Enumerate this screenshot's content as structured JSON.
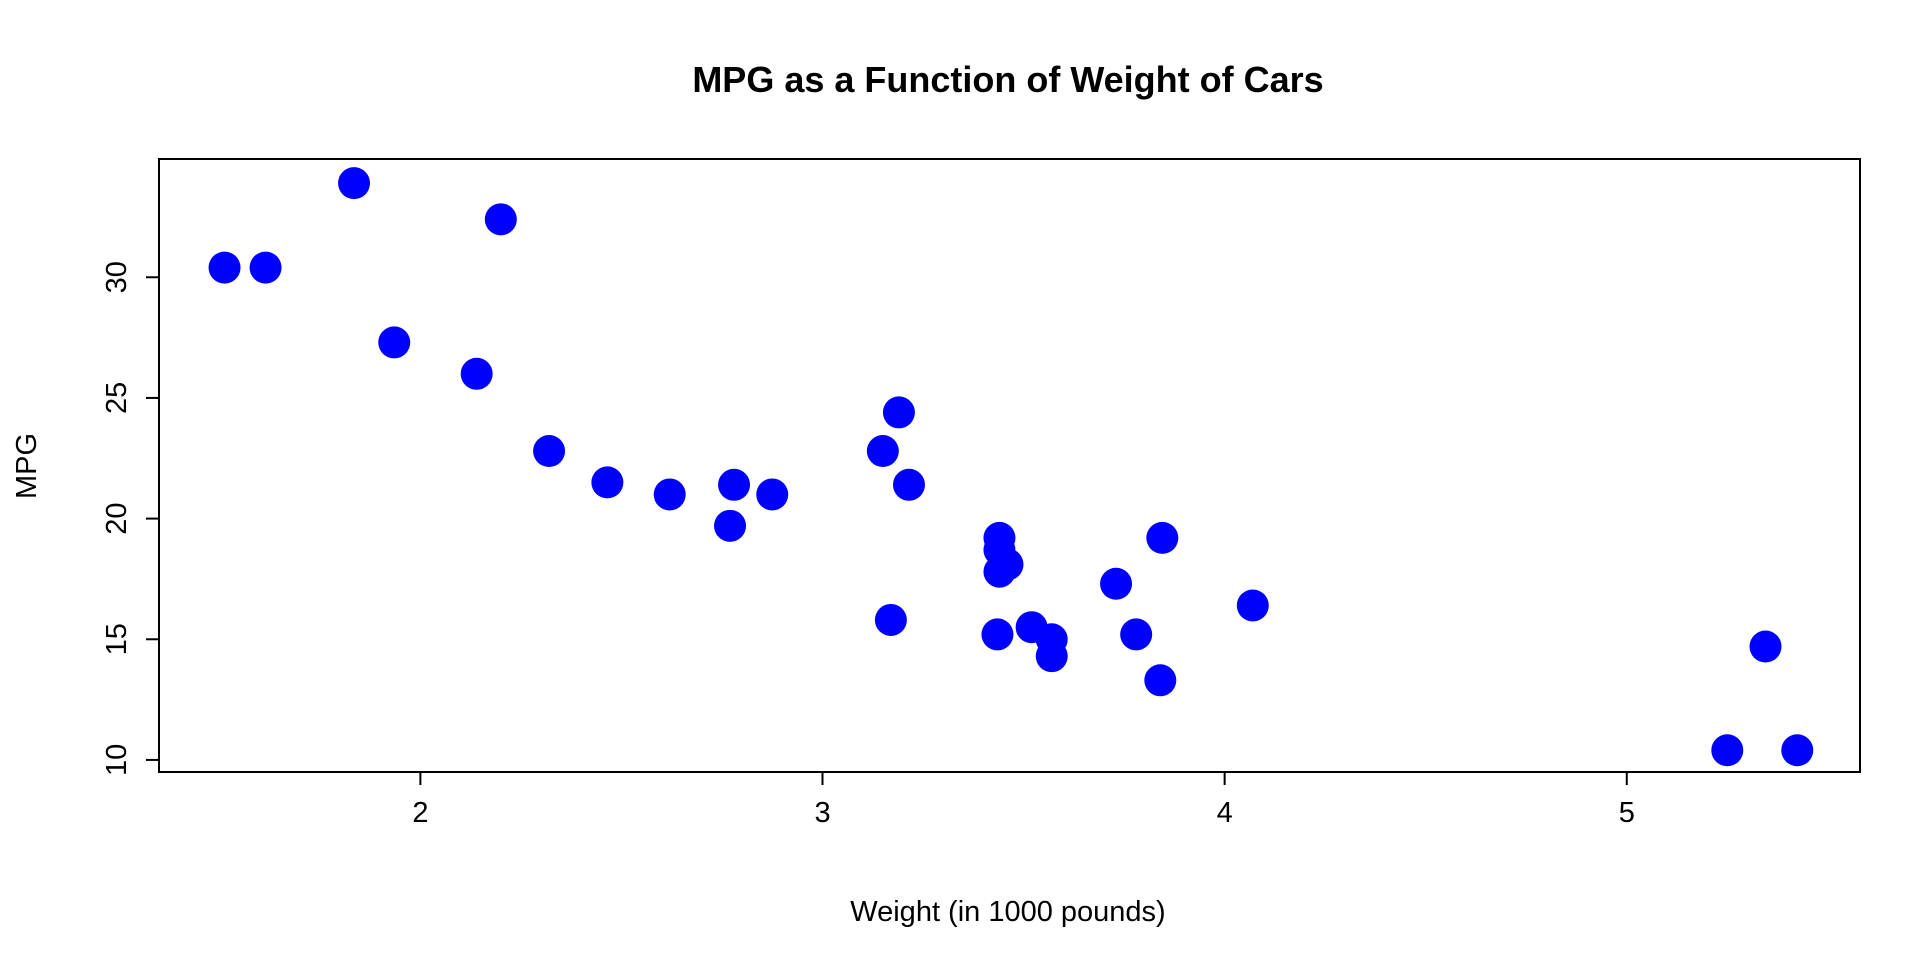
{
  "chart_data": {
    "type": "scatter",
    "title": "MPG as a Function of Weight of Cars",
    "xlabel": "Weight (in 1000 pounds)",
    "ylabel": "MPG",
    "xlim": [
      1.35,
      5.58
    ],
    "ylim": [
      9.5,
      34.9
    ],
    "xticks": [
      2,
      3,
      4,
      5
    ],
    "yticks": [
      10,
      15,
      20,
      25,
      30
    ],
    "grid": false,
    "point_color": "#0000ff",
    "points": [
      {
        "x": 2.62,
        "y": 21.0
      },
      {
        "x": 2.875,
        "y": 21.0
      },
      {
        "x": 2.32,
        "y": 22.8
      },
      {
        "x": 3.215,
        "y": 21.4
      },
      {
        "x": 3.44,
        "y": 18.7
      },
      {
        "x": 3.46,
        "y": 18.1
      },
      {
        "x": 3.57,
        "y": 14.3
      },
      {
        "x": 3.19,
        "y": 24.4
      },
      {
        "x": 3.15,
        "y": 22.8
      },
      {
        "x": 3.44,
        "y": 19.2
      },
      {
        "x": 3.44,
        "y": 17.8
      },
      {
        "x": 4.07,
        "y": 16.4
      },
      {
        "x": 3.73,
        "y": 17.3
      },
      {
        "x": 3.78,
        "y": 15.2
      },
      {
        "x": 5.25,
        "y": 10.4
      },
      {
        "x": 5.424,
        "y": 10.4
      },
      {
        "x": 5.345,
        "y": 14.7
      },
      {
        "x": 2.2,
        "y": 32.4
      },
      {
        "x": 1.615,
        "y": 30.4
      },
      {
        "x": 1.835,
        "y": 33.9
      },
      {
        "x": 2.465,
        "y": 21.5
      },
      {
        "x": 3.52,
        "y": 15.5
      },
      {
        "x": 3.435,
        "y": 15.2
      },
      {
        "x": 3.84,
        "y": 13.3
      },
      {
        "x": 3.845,
        "y": 19.2
      },
      {
        "x": 1.935,
        "y": 27.3
      },
      {
        "x": 2.14,
        "y": 26.0
      },
      {
        "x": 1.513,
        "y": 30.4
      },
      {
        "x": 3.17,
        "y": 15.8
      },
      {
        "x": 2.77,
        "y": 19.7
      },
      {
        "x": 3.57,
        "y": 15.0
      },
      {
        "x": 2.78,
        "y": 21.4
      }
    ]
  }
}
